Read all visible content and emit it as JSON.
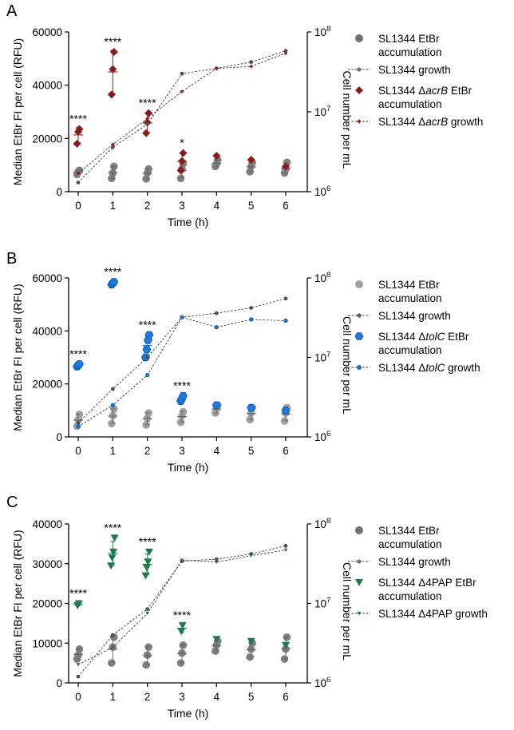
{
  "figure": {
    "y_left_label": "Median EtBr FI per cell (RFU)",
    "y_right_label": "Cell number per mL",
    "x_label": "Time (h)"
  },
  "chart_data": [
    {
      "type": "scatter",
      "panel_letter": "A",
      "x_ticks": [
        "0",
        "1",
        "2",
        "3",
        "4",
        "5",
        "6"
      ],
      "xlabel": "Time (h)",
      "ylabel": "Median EtBr FI per cell (RFU)",
      "ylabel_right": "Cell number per mL",
      "ylim": [
        0,
        60000
      ],
      "y_ticks": [
        "0",
        "20000",
        "40000",
        "60000"
      ],
      "y2_scale": "log",
      "y2lim": [
        1000000,
        100000000
      ],
      "y2_ticks": [
        {
          "base": "10",
          "exp": "6",
          "value": 1000000
        },
        {
          "base": "10",
          "exp": "7",
          "value": 10000000
        },
        {
          "base": "10",
          "exp": "8",
          "value": 100000000
        }
      ],
      "legend_position": "right",
      "legend": [
        {
          "lines": [
            {
              "text": "SL1344 EtBr"
            },
            {
              "text": "accumulation"
            }
          ],
          "kind": "dot",
          "color": "#707070"
        },
        {
          "lines": [
            {
              "text": "SL1344 growth"
            }
          ],
          "kind": "dot-line",
          "color": "#707070"
        },
        {
          "lines": [
            {
              "text": "SL1344 ",
              "prefix": "SL1344 Δ",
              "italic": "acrB",
              "suffix": " EtBr"
            },
            {
              "text": "accumulation"
            }
          ],
          "kind": "diamond",
          "color": "#8b1a1a"
        },
        {
          "lines": [
            {
              "text": "SL1344 ",
              "prefix": "SL1344 Δ",
              "italic": "acrB",
              "suffix": " growth"
            }
          ],
          "kind": "diamond-line",
          "color": "#8b1a1a"
        }
      ],
      "accumulation_series": [
        {
          "name": "SL1344 EtBr accumulation",
          "marker": "circle",
          "color": "#7f7f7f",
          "points": [
            [
              0,
              [
                6500,
                7500,
                8000
              ]
            ],
            [
              1,
              [
                5000,
                7000,
                9500
              ]
            ],
            [
              2,
              [
                4800,
                7000,
                8500
              ]
            ],
            [
              3,
              [
                5000,
                8500,
                10500
              ]
            ],
            [
              4,
              [
                9500,
                10500,
                12000
              ]
            ],
            [
              5,
              [
                7500,
                9500,
                11000
              ]
            ],
            [
              6,
              [
                7000,
                8500,
                11000
              ]
            ]
          ]
        },
        {
          "name": "SL1344 ΔacrB EtBr accumulation",
          "marker": "diamond",
          "color": "#8b1a1a",
          "points": [
            [
              0,
              [
                18000,
                22500,
                23500
              ]
            ],
            [
              1,
              [
                36500,
                46000,
                52500
              ]
            ],
            [
              2,
              [
                22000,
                26000,
                29500
              ]
            ],
            [
              3,
              [
                8000,
                11500,
                14500
              ]
            ],
            [
              4,
              [
                13500
              ]
            ],
            [
              5,
              [
                12000
              ]
            ],
            [
              6,
              [
                9500
              ]
            ]
          ]
        }
      ],
      "growth_series": [
        {
          "name": "SL1344 growth",
          "marker": "circle",
          "color": "#505050",
          "values": [
            1300000,
            3600000,
            7000000,
            30000000,
            35000000,
            42000000,
            58000000
          ]
        },
        {
          "name": "SL1344 ΔacrB growth",
          "marker": "diamond",
          "color": "#8b1a1a",
          "values": [
            1700000,
            3900000,
            8200000,
            18000000,
            35000000,
            37000000,
            54000000
          ]
        }
      ],
      "significance": [
        {
          "x": 0,
          "text": "****"
        },
        {
          "x": 1,
          "text": "****"
        },
        {
          "x": 2,
          "text": "****"
        },
        {
          "x": 3,
          "text": "*"
        }
      ]
    },
    {
      "type": "scatter",
      "panel_letter": "B",
      "x_ticks": [
        "0",
        "1",
        "2",
        "3",
        "4",
        "5",
        "6"
      ],
      "xlabel": "Time (h)",
      "ylabel": "Median EtBr FI per cell (RFU)",
      "ylabel_right": "Cell number per mL",
      "ylim": [
        0,
        60000
      ],
      "y_ticks": [
        "0",
        "20000",
        "40000",
        "60000"
      ],
      "y2_scale": "log",
      "y2lim": [
        1000000,
        100000000
      ],
      "y2_ticks": [
        {
          "base": "10",
          "exp": "6",
          "value": 1000000
        },
        {
          "base": "10",
          "exp": "7",
          "value": 10000000
        },
        {
          "base": "10",
          "exp": "8",
          "value": 100000000
        }
      ],
      "legend_position": "right",
      "legend": [
        {
          "lines": [
            {
              "text": "SL1344 EtBr"
            },
            {
              "text": "accumulation"
            }
          ],
          "kind": "dot",
          "color": "#a0a0a0"
        },
        {
          "lines": [
            {
              "text": "SL1344 growth"
            }
          ],
          "kind": "dot-line",
          "color": "#5a5a5a"
        },
        {
          "lines": [
            {
              "text": "SL1344 ",
              "prefix": "SL1344 Δ",
              "italic": "tolC",
              "suffix": " EtBr"
            },
            {
              "text": "accumulation"
            }
          ],
          "kind": "hexagon",
          "color": "#1f7ae0"
        },
        {
          "lines": [
            {
              "text": "SL1344 ",
              "prefix": "SL1344 Δ",
              "italic": "tolC",
              "suffix": " growth"
            }
          ],
          "kind": "hexagon-line",
          "color": "#1f7ae0"
        }
      ],
      "accumulation_series": [
        {
          "name": "SL1344 EtBr accumulation",
          "marker": "circle",
          "color": "#a0a0a0",
          "points": [
            [
              0,
              [
                4000,
                6500,
                8500
              ]
            ],
            [
              1,
              [
                5000,
                8000,
                10500
              ]
            ],
            [
              2,
              [
                4500,
                7000,
                9000
              ]
            ],
            [
              3,
              [
                5500,
                8000,
                9500
              ]
            ],
            [
              4,
              [
                9000,
                10500,
                12000
              ]
            ],
            [
              5,
              [
                6500,
                9000,
                11000
              ]
            ],
            [
              6,
              [
                6000,
                9000,
                11000
              ]
            ]
          ]
        },
        {
          "name": "SL1344 ΔtolC EtBr accumulation",
          "marker": "hexagon",
          "color": "#1f7ae0",
          "points": [
            [
              0,
              [
                26500,
                27000,
                27500
              ]
            ],
            [
              1,
              [
                57500,
                58000,
                58500
              ]
            ],
            [
              2,
              [
                30000,
                33000,
                36500,
                38500
              ]
            ],
            [
              3,
              [
                13500,
                14500,
                15500
              ]
            ],
            [
              4,
              [
                12000
              ]
            ],
            [
              5,
              [
                11000
              ]
            ],
            [
              6,
              [
                10000
              ]
            ]
          ]
        }
      ],
      "growth_series": [
        {
          "name": "SL1344 growth",
          "marker": "circle",
          "color": "#505050",
          "values": [
            1500000,
            4000000,
            10000000,
            32000000,
            36000000,
            42000000,
            55000000
          ]
        },
        {
          "name": "SL1344 ΔtolC growth",
          "marker": "hexagon",
          "color": "#1f7ae0",
          "values": [
            1350000,
            2500000,
            6000000,
            32000000,
            24000000,
            30000000,
            29000000
          ]
        }
      ],
      "significance": [
        {
          "x": 0,
          "text": "****"
        },
        {
          "x": 1,
          "text": "****"
        },
        {
          "x": 2,
          "text": "****"
        },
        {
          "x": 3,
          "text": "****"
        }
      ]
    },
    {
      "type": "scatter",
      "panel_letter": "C",
      "x_ticks": [
        "0",
        "1",
        "2",
        "3",
        "4",
        "5",
        "6"
      ],
      "xlabel": "Time (h)",
      "ylabel": "Median EtBr FI per cell (RFU)",
      "ylabel_right": "Cell number per mL",
      "ylim": [
        0,
        40000
      ],
      "y_ticks": [
        "0",
        "10000",
        "20000",
        "30000",
        "40000"
      ],
      "y2_scale": "log",
      "y2lim": [
        1000000,
        100000000
      ],
      "y2_ticks": [
        {
          "base": "10",
          "exp": "6",
          "value": 1000000
        },
        {
          "base": "10",
          "exp": "7",
          "value": 10000000
        },
        {
          "base": "10",
          "exp": "8",
          "value": 100000000
        }
      ],
      "legend_position": "right",
      "legend": [
        {
          "lines": [
            {
              "text": "SL1344 EtBr"
            },
            {
              "text": "accumulation"
            }
          ],
          "kind": "dot",
          "color": "#707070"
        },
        {
          "lines": [
            {
              "text": "SL1344 growth"
            }
          ],
          "kind": "dot-line",
          "color": "#707070"
        },
        {
          "lines": [
            {
              "text": "SL1344 Δ4PAP EtBr"
            },
            {
              "text": "accumulation"
            }
          ],
          "kind": "triangle",
          "color": "#1f7a4a"
        },
        {
          "lines": [
            {
              "text": "SL1344 Δ4PAP growth"
            }
          ],
          "kind": "triangle-line",
          "color": "#1f7a4a"
        }
      ],
      "accumulation_series": [
        {
          "name": "SL1344 EtBr accumulation",
          "marker": "circle",
          "color": "#7f7f7f",
          "points": [
            [
              0,
              [
                6000,
                7000,
                8500
              ]
            ],
            [
              1,
              [
                5000,
                9000,
                11500
              ]
            ],
            [
              2,
              [
                4500,
                7000,
                9000
              ]
            ],
            [
              3,
              [
                5000,
                7500,
                9500
              ]
            ],
            [
              4,
              [
                8000,
                9500,
                10500
              ]
            ],
            [
              5,
              [
                6500,
                8500,
                10000
              ]
            ],
            [
              6,
              [
                6000,
                8500,
                11500
              ]
            ]
          ]
        },
        {
          "name": "SL1344 Δ4PAP EtBr accumulation",
          "marker": "triangle",
          "color": "#1f7a4a",
          "points": [
            [
              0,
              [
                19500,
                20000
              ]
            ],
            [
              1,
              [
                29500,
                31500,
                33000,
                36500
              ]
            ],
            [
              2,
              [
                27000,
                29000,
                30500,
                33000
              ]
            ],
            [
              3,
              [
                13000,
                14500
              ]
            ],
            [
              4,
              [
                11000
              ]
            ],
            [
              5,
              [
                10500
              ]
            ],
            [
              6,
              [
                9500
              ]
            ]
          ]
        }
      ],
      "growth_series": [
        {
          "name": "SL1344 growth",
          "marker": "circle",
          "color": "#505050",
          "values": [
            1200000,
            4000000,
            8500000,
            34000000,
            36000000,
            42000000,
            53000000
          ]
        },
        {
          "name": "SL1344 Δ4PAP growth",
          "marker": "triangle",
          "color": "#1f7a4a",
          "values": [
            1700000,
            2800000,
            7500000,
            35000000,
            33000000,
            40000000,
            47000000
          ]
        }
      ],
      "significance": [
        {
          "x": 0,
          "text": "****"
        },
        {
          "x": 1,
          "text": "****"
        },
        {
          "x": 2,
          "text": "****"
        },
        {
          "x": 3,
          "text": "****"
        }
      ]
    }
  ]
}
